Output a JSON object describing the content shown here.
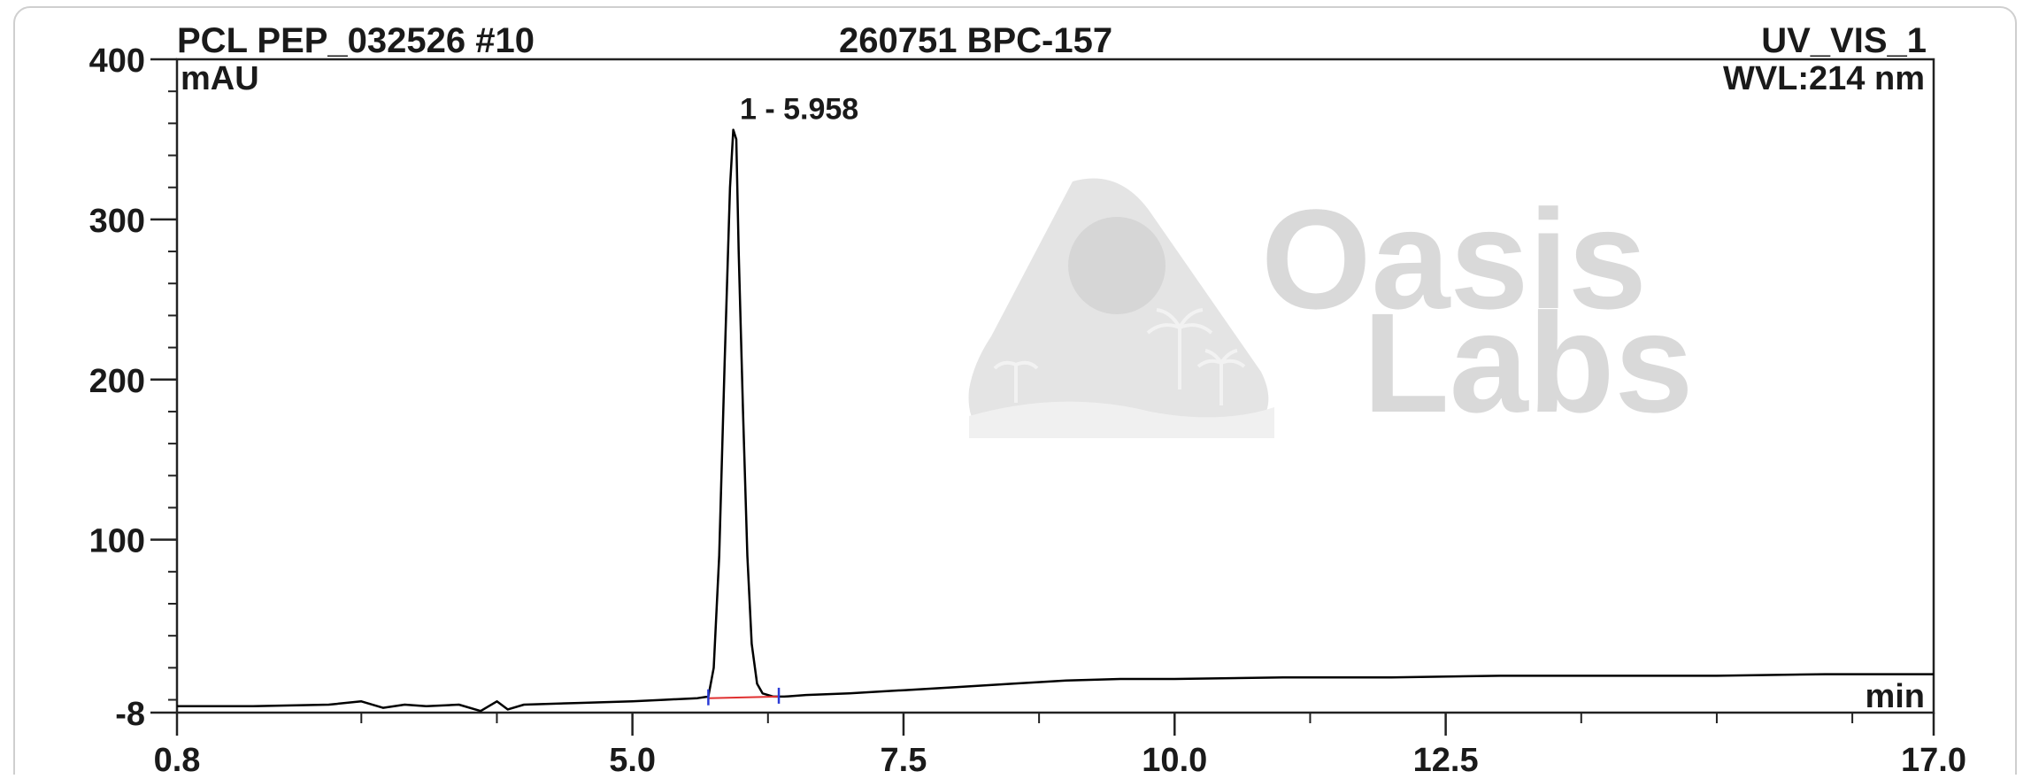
{
  "header": {
    "sample": "PCL PEP_032526 #10",
    "sample_id": "260751 BPC-157",
    "channel": "UV_VIS_1",
    "wavelength": "WVL:214 nm"
  },
  "watermark": {
    "line1": "Oasis",
    "line2": "Labs"
  },
  "chart_data": {
    "type": "line",
    "title": "PCL PEP_032526 #10    260751 BPC-157",
    "ylabel": "mAU",
    "xlabel": "min",
    "xlim": [
      0.8,
      17.0
    ],
    "ylim": [
      -8,
      400
    ],
    "x_ticks": [
      0.8,
      5.0,
      7.5,
      10.0,
      12.5,
      17.0
    ],
    "x_tick_labels": [
      "0.8",
      "5.0",
      "7.5",
      "10.0",
      "12.5",
      "17.0"
    ],
    "y_ticks": [
      -8,
      100,
      200,
      300,
      400
    ],
    "y_tick_labels": [
      "-8",
      "100",
      "200",
      "300",
      "400"
    ],
    "grid": false,
    "series": [
      {
        "name": "UV_VIS_1",
        "color": "#000000",
        "x": [
          0.8,
          1.5,
          2.2,
          2.5,
          2.7,
          2.9,
          3.1,
          3.4,
          3.6,
          3.75,
          3.85,
          4.0,
          4.5,
          5.0,
          5.3,
          5.6,
          5.7,
          5.75,
          5.8,
          5.85,
          5.9,
          5.93,
          5.958,
          5.98,
          6.02,
          6.06,
          6.1,
          6.15,
          6.2,
          6.3,
          6.4,
          6.6,
          7.0,
          7.5,
          8.0,
          8.5,
          9.0,
          9.5,
          10.0,
          11.0,
          12.0,
          13.0,
          14.0,
          15.0,
          16.0,
          17.0
        ],
        "y": [
          -4,
          -4,
          -3,
          -1,
          -5,
          -3,
          -4,
          -3,
          -7,
          -1,
          -6,
          -3,
          -2,
          -1,
          0,
          1,
          2,
          20,
          90,
          210,
          320,
          356,
          350,
          280,
          180,
          90,
          35,
          10,
          4,
          2,
          2,
          3,
          4,
          6,
          8,
          10,
          12,
          13,
          13,
          14,
          14,
          15,
          15,
          15,
          16,
          16
        ]
      }
    ],
    "annotations": [
      {
        "label": "1 - 5.958",
        "x": 5.958,
        "y": 356
      }
    ],
    "baseline": {
      "x": [
        5.7,
        6.35
      ],
      "y": [
        1,
        2
      ],
      "color": "#e03030"
    }
  }
}
